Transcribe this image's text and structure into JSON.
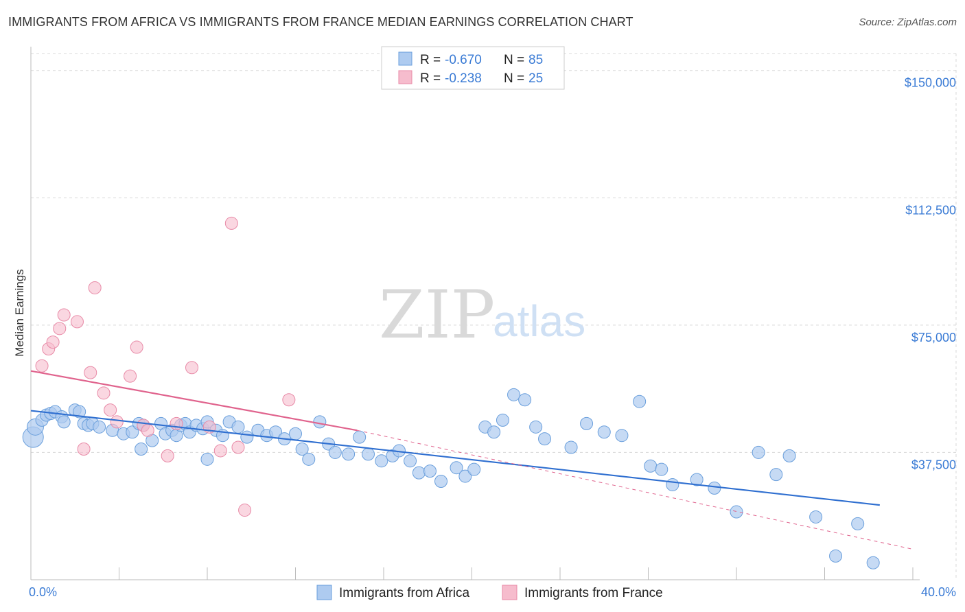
{
  "header": {
    "title": "IMMIGRANTS FROM AFRICA VS IMMIGRANTS FROM FRANCE MEDIAN EARNINGS CORRELATION CHART",
    "source": "Source: ZipAtlas.com"
  },
  "watermark": {
    "zip": "ZIP",
    "atlas": "atlas"
  },
  "legend": {
    "rows": [
      {
        "r_label": "R =",
        "r_value": "-0.670",
        "n_label": "N =",
        "n_value": "85",
        "color": "#aecbf0"
      },
      {
        "r_label": "R =",
        "r_value": "-0.238",
        "n_label": "N =",
        "n_value": "25",
        "color": "#f6bccd"
      }
    ]
  },
  "colors": {
    "africa_fill": "#aecbf0",
    "africa_stroke": "#6a9fdc",
    "africa_line": "#2f6fd0",
    "france_fill": "#f6bccd",
    "france_stroke": "#e88aa7",
    "france_line": "#e0638d",
    "grid": "#d8d8d8",
    "tick_text": "#3a7bd5"
  },
  "chart_data": {
    "type": "scatter",
    "title": "IMMIGRANTS FROM AFRICA VS IMMIGRANTS FROM FRANCE MEDIAN EARNINGS CORRELATION CHART",
    "xlabel": "",
    "ylabel": "Median Earnings",
    "xlim": [
      0,
      40
    ],
    "ylim": [
      0,
      155000
    ],
    "x_tick_labels": [
      "0.0%",
      "40.0%"
    ],
    "y_ticks": [
      37500,
      75000,
      112500,
      150000
    ],
    "y_tick_labels": [
      "$37,500",
      "$75,000",
      "$112,500",
      "$150,000"
    ],
    "grid": true,
    "series": [
      {
        "name": "Immigrants from Africa",
        "r": -0.67,
        "n": 85,
        "trend": {
          "x": [
            0,
            38.5
          ],
          "y": [
            49800,
            22000
          ]
        },
        "points": [
          [
            0.1,
            42000
          ],
          [
            0.2,
            45000
          ],
          [
            0.5,
            47000
          ],
          [
            0.7,
            48500
          ],
          [
            0.9,
            49000
          ],
          [
            1.1,
            49500
          ],
          [
            1.4,
            48000
          ],
          [
            1.5,
            46500
          ],
          [
            2.0,
            50000
          ],
          [
            2.2,
            49500
          ],
          [
            2.4,
            46000
          ],
          [
            2.6,
            45500
          ],
          [
            2.8,
            46000
          ],
          [
            3.1,
            45000
          ],
          [
            3.7,
            44000
          ],
          [
            4.2,
            43000
          ],
          [
            4.6,
            43500
          ],
          [
            4.9,
            46000
          ],
          [
            5.1,
            45500
          ],
          [
            5.5,
            41000
          ],
          [
            5.9,
            46000
          ],
          [
            6.1,
            43000
          ],
          [
            6.4,
            44000
          ],
          [
            6.6,
            42500
          ],
          [
            6.8,
            45500
          ],
          [
            7.0,
            46000
          ],
          [
            7.2,
            43500
          ],
          [
            7.5,
            45500
          ],
          [
            7.8,
            44500
          ],
          [
            8.0,
            46500
          ],
          [
            8.4,
            44000
          ],
          [
            8.7,
            42500
          ],
          [
            9.0,
            46500
          ],
          [
            9.4,
            45000
          ],
          [
            9.8,
            42000
          ],
          [
            10.3,
            44000
          ],
          [
            10.7,
            42500
          ],
          [
            11.1,
            43500
          ],
          [
            11.5,
            41500
          ],
          [
            12.0,
            43000
          ],
          [
            12.3,
            38500
          ],
          [
            12.6,
            35500
          ],
          [
            13.1,
            46500
          ],
          [
            13.5,
            40000
          ],
          [
            13.8,
            37500
          ],
          [
            14.4,
            37000
          ],
          [
            14.9,
            42000
          ],
          [
            15.3,
            37000
          ],
          [
            15.9,
            35000
          ],
          [
            16.4,
            36500
          ],
          [
            16.7,
            38000
          ],
          [
            17.2,
            35000
          ],
          [
            17.6,
            31500
          ],
          [
            18.1,
            32000
          ],
          [
            18.6,
            29000
          ],
          [
            19.3,
            33000
          ],
          [
            19.7,
            30500
          ],
          [
            20.1,
            32500
          ],
          [
            20.6,
            45000
          ],
          [
            21.0,
            43500
          ],
          [
            21.4,
            47000
          ],
          [
            21.9,
            54500
          ],
          [
            22.4,
            53000
          ],
          [
            22.9,
            45000
          ],
          [
            23.3,
            41500
          ],
          [
            24.5,
            39000
          ],
          [
            25.2,
            46000
          ],
          [
            26.0,
            43500
          ],
          [
            26.8,
            42500
          ],
          [
            27.6,
            52500
          ],
          [
            28.1,
            33500
          ],
          [
            28.6,
            32500
          ],
          [
            29.1,
            28000
          ],
          [
            30.2,
            29500
          ],
          [
            31.0,
            27000
          ],
          [
            32.0,
            20000
          ],
          [
            33.0,
            37500
          ],
          [
            33.8,
            31000
          ],
          [
            34.4,
            36500
          ],
          [
            35.6,
            18500
          ],
          [
            36.5,
            7000
          ],
          [
            37.5,
            16500
          ],
          [
            38.2,
            5000
          ],
          [
            8.0,
            35500
          ],
          [
            5.0,
            38500
          ]
        ]
      },
      {
        "name": "Immigrants from France",
        "r": -0.238,
        "n": 25,
        "trend": {
          "x": [
            0,
            14.8
          ],
          "y": [
            61500,
            44000
          ]
        },
        "trend_extension": {
          "x": [
            14.8,
            40
          ],
          "y": [
            44000,
            9000
          ]
        },
        "points": [
          [
            0.5,
            63000
          ],
          [
            0.8,
            68000
          ],
          [
            1.0,
            70000
          ],
          [
            1.3,
            74000
          ],
          [
            1.5,
            78000
          ],
          [
            2.1,
            76000
          ],
          [
            2.7,
            61000
          ],
          [
            2.9,
            86000
          ],
          [
            3.3,
            55000
          ],
          [
            3.6,
            50000
          ],
          [
            3.9,
            46500
          ],
          [
            4.5,
            60000
          ],
          [
            4.8,
            68500
          ],
          [
            5.1,
            45500
          ],
          [
            5.3,
            44000
          ],
          [
            6.2,
            36500
          ],
          [
            6.6,
            46000
          ],
          [
            7.3,
            62500
          ],
          [
            8.1,
            45000
          ],
          [
            8.6,
            38000
          ],
          [
            9.1,
            105000
          ],
          [
            9.4,
            39000
          ],
          [
            9.7,
            20500
          ],
          [
            11.7,
            53000
          ],
          [
            2.4,
            38500
          ]
        ]
      }
    ]
  },
  "bottom_legend": [
    {
      "label": "Immigrants from Africa"
    },
    {
      "label": "Immigrants from France"
    }
  ]
}
